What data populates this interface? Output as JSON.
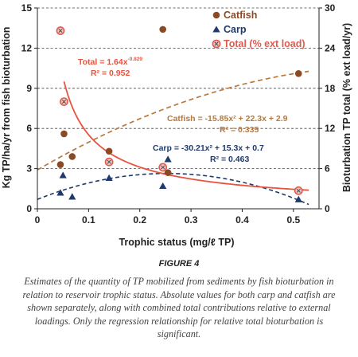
{
  "chart_data": {
    "type": "scatter",
    "xlabel": "Trophic status (mg/ℓ TP)",
    "ylabel_left": "Kg TP/ha/yr from fish bioturbation",
    "ylabel_right": "Bioturbation TP total (% ext load/yr)",
    "xlim": [
      0,
      0.55
    ],
    "ylim_left": [
      0,
      15
    ],
    "ylim_right": [
      0,
      30
    ],
    "x_ticks": [
      "0",
      "0.1",
      "0.2",
      "0.3",
      "0.4",
      "0.5"
    ],
    "x_tick_values": [
      0,
      0.1,
      0.2,
      0.3,
      0.4,
      0.5
    ],
    "y_left_ticks": [
      "0",
      "3",
      "6",
      "9",
      "12",
      "15"
    ],
    "y_left_tick_values": [
      0,
      3,
      6,
      9,
      12,
      15
    ],
    "y_right_ticks": [
      "0",
      "6",
      "12",
      "18",
      "24",
      "30"
    ],
    "y_right_tick_values": [
      0,
      6,
      12,
      18,
      24,
      30
    ],
    "grid": "horizontal dashed",
    "legend_position": "top-center",
    "series": [
      {
        "name": "Catfish",
        "axis": "left",
        "marker": "circle",
        "color": "#8b4a24",
        "points": [
          [
            0.045,
            3.3
          ],
          [
            0.052,
            5.6
          ],
          [
            0.068,
            3.9
          ],
          [
            0.14,
            4.3
          ],
          [
            0.245,
            13.4
          ],
          [
            0.255,
            2.7
          ],
          [
            0.51,
            10.1
          ]
        ]
      },
      {
        "name": "Carp",
        "axis": "left",
        "marker": "triangle",
        "color": "#1f3a6b",
        "points": [
          [
            0.045,
            1.2
          ],
          [
            0.05,
            2.5
          ],
          [
            0.068,
            0.9
          ],
          [
            0.14,
            2.3
          ],
          [
            0.245,
            1.7
          ],
          [
            0.255,
            3.7
          ],
          [
            0.51,
            0.7
          ]
        ]
      },
      {
        "name": "Total (% ext load)",
        "axis": "right",
        "marker": "circle-x",
        "color": "#e05a4e",
        "points": [
          [
            0.045,
            26.6
          ],
          [
            0.052,
            16
          ],
          [
            0.14,
            7
          ],
          [
            0.245,
            6.2
          ],
          [
            0.51,
            2.7
          ]
        ]
      }
    ],
    "fits": [
      {
        "series": "Total (% ext load)",
        "axis": "right",
        "color": "#e8533f",
        "style": "solid",
        "equation": "Total = 1.64x",
        "exponent": "-0.829",
        "r2": "R² = 0.952"
      },
      {
        "series": "Catfish",
        "axis": "left",
        "color": "#b8783e",
        "style": "dashed",
        "equation": "Catfish = -15.85x² + 22.3x + 2.9",
        "r2": "R² = 0.335"
      },
      {
        "series": "Carp",
        "axis": "left",
        "color": "#1f3a6b",
        "style": "dashed",
        "equation": "Carp = -30.21x² + 15.3x + 0.7",
        "r2": "R² = 0.463"
      }
    ]
  },
  "caption": {
    "title": "FIGURE 4",
    "text": "Estimates of the quantity of TP mobilized from sediments by fish bioturbation in relation to reservoir trophic status. Absolute values for both carp and catfish are shown separately, along with combined total contributions relative to external loadings. Only the regression relationship for relative total bioturbation is significant."
  }
}
